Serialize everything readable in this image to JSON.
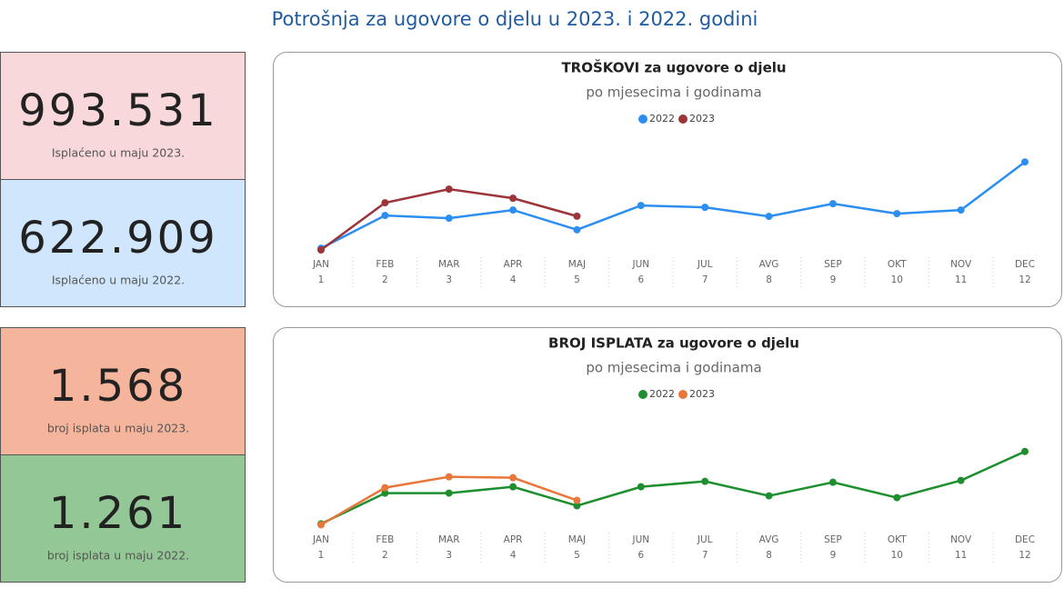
{
  "title": "Potrošnja za ugovore o djelu u 2023. i 2022. godini",
  "cards": [
    {
      "value": "993.531",
      "label": "Isplaćeno u maju 2023."
    },
    {
      "value": "622.909",
      "label": "Isplaćeno u maju 2022."
    },
    {
      "value": "1.568",
      "label": "broj isplata u maju 2023."
    },
    {
      "value": "1.261",
      "label": "broj isplata u maju 2022."
    }
  ],
  "chart_data": [
    {
      "type": "line",
      "title": "TROŠKOVI za ugovore o djelu",
      "subtitle": "po mjesecima i godinama",
      "categories": [
        "JAN",
        "FEB",
        "MAR",
        "APR",
        "MAJ",
        "JUN",
        "JUL",
        "AVG",
        "SEP",
        "OKT",
        "NOV",
        "DEC"
      ],
      "x": [
        1,
        2,
        3,
        4,
        5,
        6,
        7,
        8,
        9,
        10,
        11,
        12
      ],
      "xlim": [
        1,
        12
      ],
      "ylim": [
        0,
        2550000
      ],
      "series": [
        {
          "name": "2022",
          "color": "#2b8ef0",
          "values": [
            120000,
            1013000,
            939000,
            1161000,
            622909,
            1285000,
            1235000,
            988000,
            1334000,
            1062000,
            1161000,
            2471000
          ]
        },
        {
          "name": "2023",
          "color": "#9c3439",
          "values": [
            74000,
            1359000,
            1730000,
            1482000,
            993531,
            null,
            null,
            null,
            null,
            null,
            null,
            null
          ]
        }
      ]
    },
    {
      "type": "line",
      "title": "BROJ ISPLATA za ugovore o djelu",
      "subtitle": "po mjesecima i godinama",
      "categories": [
        "JAN",
        "FEB",
        "MAR",
        "APR",
        "MAJ",
        "JUN",
        "JUL",
        "AVG",
        "SEP",
        "OKT",
        "NOV",
        "DEC"
      ],
      "x": [
        1,
        2,
        3,
        4,
        5,
        6,
        7,
        8,
        9,
        10,
        11,
        12
      ],
      "xlim": [
        1,
        12
      ],
      "ylim": [
        0,
        5300
      ],
      "series": [
        {
          "name": "2022",
          "color": "#1e8f2e",
          "values": [
            235,
            1976,
            1976,
            2335,
            1261,
            2335,
            2642,
            1823,
            2591,
            1720,
            2693,
            4332
          ]
        },
        {
          "name": "2023",
          "color": "#e8773b",
          "values": [
            184,
            2284,
            2898,
            2847,
            1568,
            null,
            null,
            null,
            null,
            null,
            null,
            null
          ]
        }
      ]
    }
  ]
}
